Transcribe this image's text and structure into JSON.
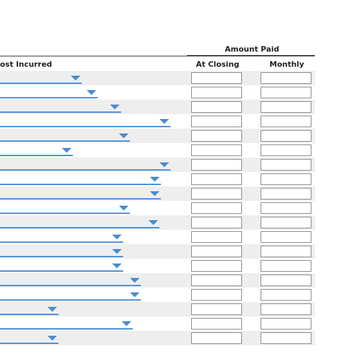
{
  "header": {
    "amount_paid": "Amount Paid",
    "cost_incurred": "ost Incurred",
    "at_closing": "At Closing",
    "monthly": "Monthly"
  },
  "rows": [
    {
      "at_closing": "",
      "monthly": ""
    },
    {
      "at_closing": "",
      "monthly": ""
    },
    {
      "at_closing": "",
      "monthly": ""
    },
    {
      "at_closing": "",
      "monthly": ""
    },
    {
      "at_closing": "",
      "monthly": ""
    },
    {
      "at_closing": "",
      "monthly": ""
    },
    {
      "at_closing": "",
      "monthly": ""
    },
    {
      "at_closing": "",
      "monthly": ""
    },
    {
      "at_closing": "",
      "monthly": ""
    },
    {
      "at_closing": "",
      "monthly": ""
    },
    {
      "at_closing": "",
      "monthly": ""
    },
    {
      "at_closing": "",
      "monthly": ""
    },
    {
      "at_closing": "",
      "monthly": ""
    },
    {
      "at_closing": "",
      "monthly": ""
    },
    {
      "at_closing": "",
      "monthly": ""
    },
    {
      "at_closing": "",
      "monthly": ""
    },
    {
      "at_closing": "",
      "monthly": ""
    },
    {
      "at_closing": "",
      "monthly": ""
    },
    {
      "at_closing": "",
      "monthly": ""
    }
  ],
  "colors": {
    "dropdown_line": "#4a90d9",
    "row_shade": "#eeeeee"
  },
  "icons": {
    "dropdown": "chevron-down-icon"
  }
}
